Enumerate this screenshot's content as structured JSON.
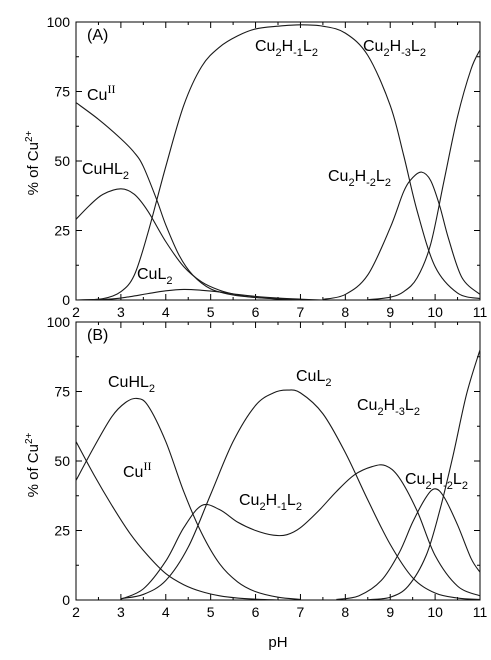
{
  "figure": {
    "xlabel": "pH",
    "ylabel": "% of Cu",
    "ylabel_sup": "2+"
  },
  "chart_data": [
    {
      "type": "line",
      "panel": "(A)",
      "xlabel": "pH",
      "ylabel": "% of Cu2+",
      "xlim": [
        2,
        11
      ],
      "ylim": [
        0,
        100
      ],
      "xticks": [
        2,
        3,
        4,
        5,
        6,
        7,
        8,
        9,
        10,
        11
      ],
      "yticks": [
        0,
        25,
        50,
        75,
        100
      ],
      "grid": false,
      "species_labels": [
        {
          "id": "a-cu",
          "base": "Cu",
          "parts": [
            [
              "sup",
              "II"
            ]
          ]
        },
        {
          "id": "a-cuhl2",
          "base": "CuHL",
          "parts": [
            [
              "sub",
              "2"
            ]
          ]
        },
        {
          "id": "a-cul2",
          "base": "CuL",
          "parts": [
            [
              "sub",
              "2"
            ]
          ]
        },
        {
          "id": "a-cu2h-1l2",
          "base": "Cu",
          "parts": [
            [
              "sub",
              "2"
            ],
            [
              "n",
              "H"
            ],
            [
              "sub",
              "-1"
            ],
            [
              "n",
              "L"
            ],
            [
              "sub",
              "2"
            ]
          ]
        },
        {
          "id": "a-cu2h-3l2",
          "base": "Cu",
          "parts": [
            [
              "sub",
              "2"
            ],
            [
              "n",
              "H"
            ],
            [
              "sub",
              "-3"
            ],
            [
              "n",
              "L"
            ],
            [
              "sub",
              "2"
            ]
          ]
        },
        {
          "id": "a-cu2h-2l2",
          "base": "Cu",
          "parts": [
            [
              "sub",
              "2"
            ],
            [
              "n",
              "H"
            ],
            [
              "sub",
              "-2"
            ],
            [
              "n",
              "L"
            ],
            [
              "sub",
              "2"
            ]
          ]
        }
      ],
      "series": [
        {
          "name": "CuII",
          "x": [
            2.0,
            2.5,
            3.0,
            3.3,
            3.5,
            3.8,
            4.0,
            4.3,
            4.6,
            5.0,
            5.5,
            6.0,
            6.5,
            7.0
          ],
          "y": [
            71,
            65,
            58,
            53,
            48,
            36,
            27,
            16,
            9,
            4,
            1.8,
            0.9,
            0.4,
            0.1
          ]
        },
        {
          "name": "CuHL2",
          "x": [
            2.0,
            2.3,
            2.6,
            3.0,
            3.3,
            3.6,
            4.0,
            4.4,
            4.8,
            5.2,
            5.6,
            6.0,
            6.5,
            7.0
          ],
          "y": [
            29,
            34,
            38,
            40,
            38,
            32,
            21,
            12,
            6.5,
            3.5,
            1.8,
            0.9,
            0.4,
            0.1
          ]
        },
        {
          "name": "CuL2",
          "x": [
            2.0,
            2.8,
            3.2,
            3.6,
            4.0,
            4.4,
            4.8,
            5.2,
            5.6,
            6.0,
            6.5,
            7.0,
            7.5
          ],
          "y": [
            0,
            0.4,
            1.2,
            2.3,
            3.3,
            3.8,
            3.5,
            2.9,
            2.0,
            1.3,
            0.7,
            0.3,
            0
          ]
        },
        {
          "name": "Cu2H-1L2",
          "x": [
            2.0,
            2.6,
            3.0,
            3.3,
            3.6,
            4.0,
            4.4,
            4.8,
            5.2,
            5.6,
            6.0,
            6.5,
            7.0,
            7.5,
            8.0,
            8.5,
            9.0,
            9.3,
            9.6,
            10.0,
            10.5,
            11.0
          ],
          "y": [
            0,
            0.5,
            3,
            9,
            24,
            48,
            70,
            84,
            91,
            95,
            97.5,
            98.5,
            99,
            98.5,
            96,
            88,
            70,
            52,
            32,
            12,
            2.5,
            0.5
          ]
        },
        {
          "name": "Cu2H-2L2",
          "x": [
            7.5,
            8.0,
            8.5,
            9.0,
            9.3,
            9.5,
            9.7,
            9.9,
            10.1,
            10.3,
            10.6,
            11.0
          ],
          "y": [
            0.2,
            2,
            9,
            26,
            39,
            44,
            46,
            43,
            34,
            22,
            8,
            2
          ]
        },
        {
          "name": "Cu2H-3L2",
          "x": [
            8.5,
            9.0,
            9.3,
            9.6,
            9.9,
            10.2,
            10.5,
            10.8,
            11.0
          ],
          "y": [
            0.1,
            1,
            3,
            8,
            20,
            43,
            66,
            83,
            90
          ]
        }
      ]
    },
    {
      "type": "line",
      "panel": "(B)",
      "xlabel": "pH",
      "ylabel": "% of Cu2+",
      "xlim": [
        2,
        11
      ],
      "ylim": [
        0,
        100
      ],
      "xticks": [
        2,
        3,
        4,
        5,
        6,
        7,
        8,
        9,
        10,
        11
      ],
      "yticks": [
        0,
        25,
        50,
        75,
        100
      ],
      "grid": false,
      "species_labels": [
        {
          "id": "b-cuhl2",
          "base": "CuHL",
          "parts": [
            [
              "sub",
              "2"
            ]
          ]
        },
        {
          "id": "b-cu",
          "base": "Cu",
          "parts": [
            [
              "sup",
              "II"
            ]
          ]
        },
        {
          "id": "b-cul2",
          "base": "CuL",
          "parts": [
            [
              "sub",
              "2"
            ]
          ]
        },
        {
          "id": "b-cu2h-1l2",
          "base": "Cu",
          "parts": [
            [
              "sub",
              "2"
            ],
            [
              "n",
              "H"
            ],
            [
              "sub",
              "-1"
            ],
            [
              "n",
              "L"
            ],
            [
              "sub",
              "2"
            ]
          ]
        },
        {
          "id": "b-cu2h-3l2",
          "base": "Cu",
          "parts": [
            [
              "sub",
              "2"
            ],
            [
              "n",
              "H"
            ],
            [
              "sub",
              "-3"
            ],
            [
              "n",
              "L"
            ],
            [
              "sub",
              "2"
            ]
          ]
        },
        {
          "id": "b-cu2h-2l2",
          "base": "Cu",
          "parts": [
            [
              "sub",
              "2"
            ],
            [
              "n",
              "H"
            ],
            [
              "sub",
              "-2"
            ],
            [
              "n",
              "L"
            ],
            [
              "sub",
              "2"
            ]
          ]
        }
      ],
      "series": [
        {
          "name": "CuII",
          "x": [
            2.0,
            2.4,
            2.8,
            3.2,
            3.6,
            4.0,
            4.4,
            4.8,
            5.2,
            5.6,
            6.0,
            6.5
          ],
          "y": [
            57,
            45,
            34,
            24,
            16,
            9.5,
            5.5,
            3,
            1.5,
            0.7,
            0.3,
            0
          ]
        },
        {
          "name": "CuHL2",
          "x": [
            2.0,
            2.4,
            2.8,
            3.1,
            3.35,
            3.6,
            4.0,
            4.4,
            4.8,
            5.2,
            5.6,
            6.0,
            6.5,
            7.0
          ],
          "y": [
            43,
            55,
            66,
            71,
            72.5,
            70,
            57,
            39,
            24,
            13,
            6.5,
            3,
            1,
            0.2
          ]
        },
        {
          "name": "CuL2",
          "x": [
            3.0,
            3.5,
            4.0,
            4.5,
            5.0,
            5.5,
            6.0,
            6.4,
            6.7,
            7.0,
            7.5,
            8.0,
            8.5,
            9.0,
            9.5,
            10.0,
            10.5,
            11.0
          ],
          "y": [
            0.5,
            2,
            7,
            19,
            38,
            57,
            70,
            74.5,
            75.5,
            74.5,
            67,
            53,
            36,
            20,
            8,
            2.5,
            0.7,
            0.2
          ]
        },
        {
          "name": "Cu2H-1L2",
          "x": [
            3.0,
            3.5,
            4.0,
            4.4,
            4.8,
            5.2,
            5.6,
            6.0,
            6.4,
            6.7,
            7.0,
            7.4,
            7.8,
            8.2,
            8.6,
            8.9,
            9.2,
            9.6,
            10.0,
            10.5,
            11.0
          ],
          "y": [
            0.3,
            4,
            14,
            26,
            34,
            32.5,
            28,
            25,
            23.3,
            23.5,
            26,
            32,
            39,
            45,
            48,
            48.3,
            44,
            32,
            16,
            5,
            1.5
          ]
        },
        {
          "name": "Cu2H-2L2",
          "x": [
            7.8,
            8.3,
            8.8,
            9.2,
            9.5,
            9.8,
            10.0,
            10.2,
            10.5,
            10.8,
            11.0
          ],
          "y": [
            0.2,
            1.5,
            7,
            17,
            28,
            37,
            40,
            37,
            27,
            15,
            10
          ]
        },
        {
          "name": "Cu2H-3L2",
          "x": [
            8.5,
            9.0,
            9.4,
            9.8,
            10.1,
            10.4,
            10.7,
            11.0
          ],
          "y": [
            0.1,
            1,
            5,
            16,
            32,
            52,
            74,
            90
          ]
        }
      ]
    }
  ]
}
